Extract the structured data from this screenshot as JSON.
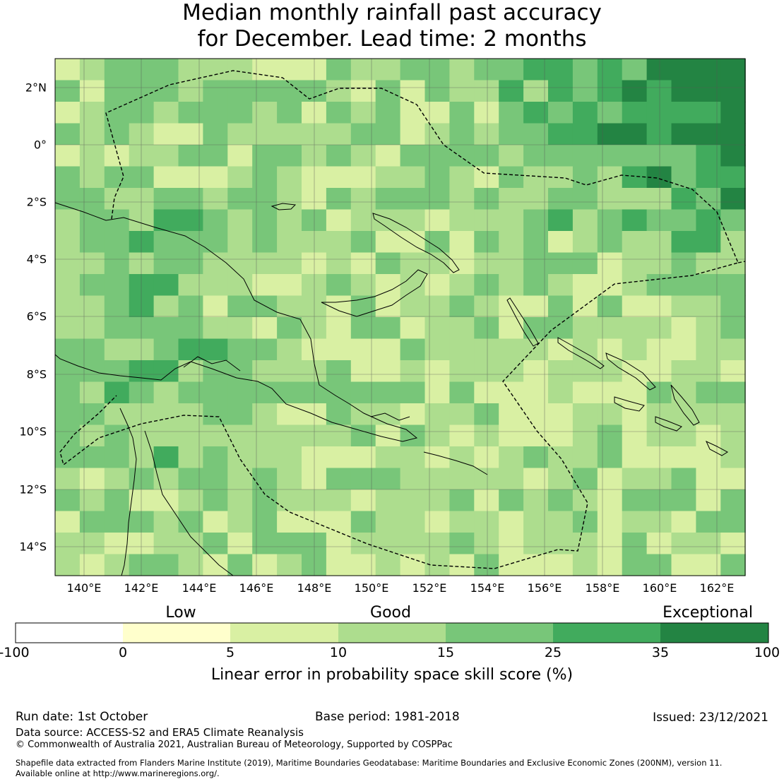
{
  "title": {
    "line1": "Median monthly rainfall past accuracy",
    "line2": "for December. Lead time: 2 months"
  },
  "map": {
    "lon_ticks": [
      "140°E",
      "142°E",
      "144°E",
      "146°E",
      "148°E",
      "150°E",
      "152°E",
      "154°E",
      "156°E",
      "158°E",
      "160°E",
      "162°E"
    ],
    "lat_ticks": [
      "2°N",
      "0°",
      "2°S",
      "4°S",
      "6°S",
      "8°S",
      "10°S",
      "12°S",
      "14°S"
    ],
    "colors": {
      "c0": "#ffffff",
      "c1": "#ffffcc",
      "c2": "#d9f0a3",
      "c3": "#addd8e",
      "c4": "#78c679",
      "c5": "#41ab5d",
      "c6": "#238443",
      "land_outline": "#000000",
      "eez_line": "#000000",
      "grid": "#555555"
    }
  },
  "colorbar": {
    "category_labels": [
      "Low",
      "Good",
      "Exceptional"
    ],
    "tick_labels": [
      "-100",
      "0",
      "5",
      "10",
      "15",
      "25",
      "35",
      "100"
    ],
    "title": "Linear error in probability space skill score (%)"
  },
  "footer": {
    "run_date": "Run date: 1st October",
    "base_period": "Base period: 1981-2018",
    "issued": "Issued: 23/12/2021",
    "data_source": "Data source: ACCESS-S2 and ERA5 Climate Reanalysis",
    "copyright": "© Commonwealth of Australia 2021, Australian Bureau of Meteorology, Supported by COSPPac",
    "shapefile_line1": "Shapefile data extracted from Flanders Marine Institute (2019), Maritime Boundaries Geodatabase: Maritime Boundaries and Exclusive Economic Zones (200NM), version 11.",
    "shapefile_line2": "Available online at http://www.marineregions.org/."
  }
}
